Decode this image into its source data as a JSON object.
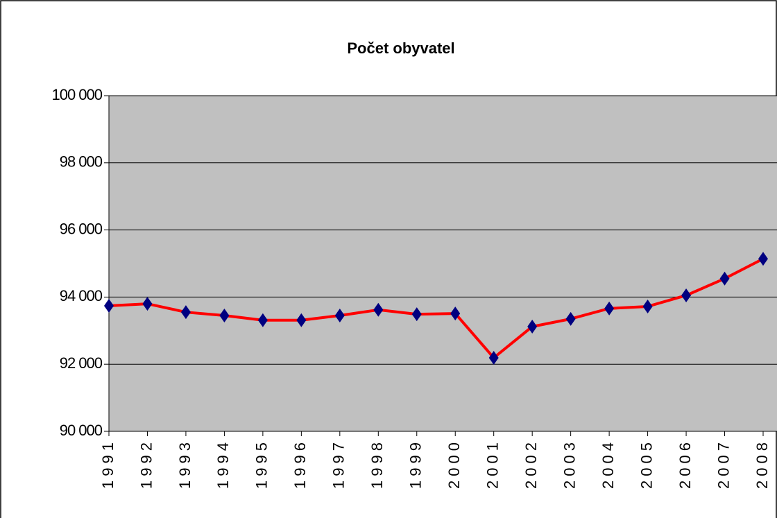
{
  "chart_data": {
    "type": "line",
    "title": "Počet obyvatel",
    "categories": [
      "1991",
      "1992",
      "1993",
      "1994",
      "1995",
      "1996",
      "1997",
      "1998",
      "1999",
      "2000",
      "2001",
      "2002",
      "2003",
      "2004",
      "2005",
      "2006",
      "2007",
      "2008"
    ],
    "series": [
      {
        "name": "Počet obyvatel",
        "color": "#ff0000",
        "marker_color": "#000080",
        "values": [
          93740,
          93800,
          93550,
          93450,
          93310,
          93310,
          93450,
          93620,
          93490,
          93510,
          92190,
          93120,
          93350,
          93660,
          93720,
          94050,
          94550,
          95140
        ]
      }
    ],
    "ylim": [
      90000,
      100000
    ],
    "yticks": [
      {
        "value": 90000,
        "label": "90 000"
      },
      {
        "value": 92000,
        "label": "92 000"
      },
      {
        "value": 94000,
        "label": "94 000"
      },
      {
        "value": 96000,
        "label": "96 000"
      },
      {
        "value": 98000,
        "label": "98 000"
      },
      {
        "value": 100000,
        "label": "100 000"
      }
    ],
    "grid": true
  }
}
